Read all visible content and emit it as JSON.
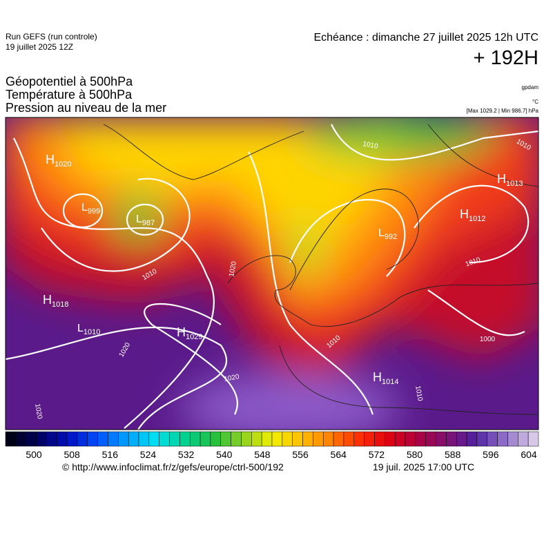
{
  "header": {
    "run": "Run GEFS (run controle)",
    "run_date": "19 juillet 2025 12Z",
    "valid_time": "Echéance : dimanche 27 juillet 2025 12h UTC",
    "lead": "+ 192H"
  },
  "titles": [
    "Géopotentiel à 500hPa",
    "Température à 500hPa",
    "Pression au niveau de la mer"
  ],
  "units": {
    "geopotential": "gpdam",
    "temperature": "°C",
    "pressure": "[Max 1029.2 | Min 986.7] hPa"
  },
  "centers": [
    {
      "letter": "H",
      "value": 1020
    },
    {
      "letter": "L",
      "value": 999
    },
    {
      "letter": "L",
      "value": 987
    },
    {
      "letter": "H",
      "value": 1018
    },
    {
      "letter": "L",
      "value": 1010
    },
    {
      "letter": "H",
      "value": 1029
    },
    {
      "letter": "H",
      "value": 1014
    },
    {
      "letter": "H",
      "value": 1013
    },
    {
      "letter": "H",
      "value": 1012
    },
    {
      "letter": "L",
      "value": 992
    }
  ],
  "isobar_labels": [
    1010,
    1020,
    1020,
    1020,
    1010,
    1000,
    1010,
    1010,
    1010,
    1010,
    1020
  ],
  "colorbar": {
    "ticks": [
      500,
      508,
      516,
      524,
      532,
      540,
      548,
      556,
      564,
      572,
      580,
      588,
      596,
      604
    ]
  },
  "footer": {
    "url": "© http://www.infoclimat.fr/z/gefs/europe/ctrl-500/192",
    "generated": "19 juil. 2025 17:00 UTC"
  }
}
